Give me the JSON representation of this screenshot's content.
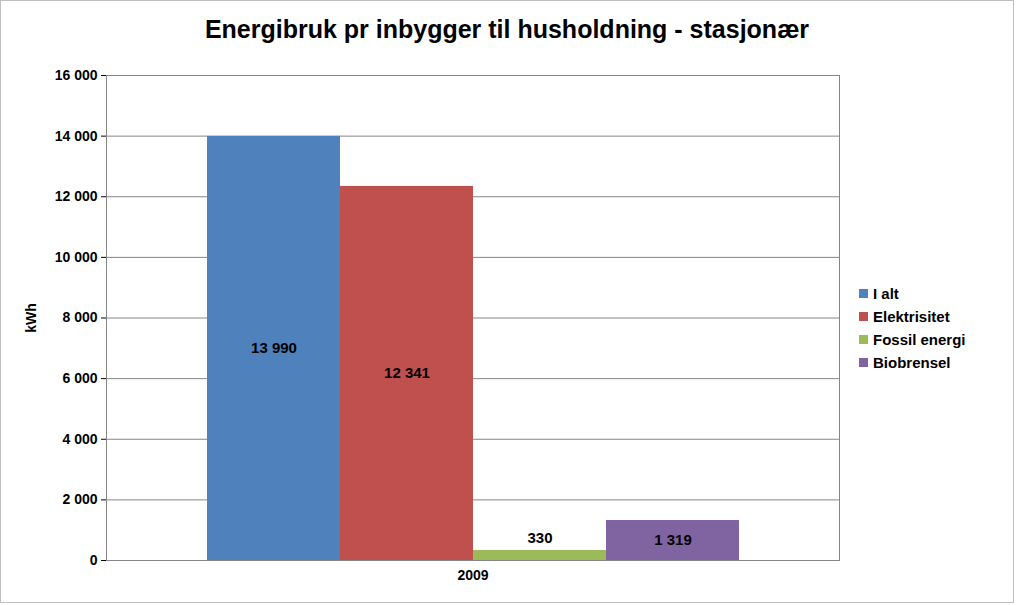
{
  "chart_data": {
    "type": "bar",
    "title": "Energibruk pr inbygger  til husholdning - stasjonær",
    "categories": [
      "2009"
    ],
    "series": [
      {
        "name": "I alt",
        "color": "#4F81BD",
        "values": [
          13990
        ],
        "value_labels": [
          "13 990"
        ]
      },
      {
        "name": "Elektrisitet",
        "color": "#C0504D",
        "values": [
          12341
        ],
        "value_labels": [
          "12 341"
        ]
      },
      {
        "name": "Fossil energi",
        "color": "#9BBB59",
        "values": [
          330
        ],
        "value_labels": [
          "330"
        ]
      },
      {
        "name": "Biobrensel",
        "color": "#8064A2",
        "values": [
          1319
        ],
        "value_labels": [
          "1 319"
        ]
      }
    ],
    "y_label": "kWh",
    "ylim": [
      0,
      16000
    ],
    "yticks": [
      0,
      {
        "value": 2000,
        "label": "2 000"
      },
      {
        "value": 4000,
        "label": "4 000"
      },
      {
        "value": 6000,
        "label": "6 000"
      },
      {
        "value": 8000,
        "label": "8 000"
      },
      {
        "value": 10000,
        "label": "10 000"
      },
      {
        "value": 12000,
        "label": "12 000"
      },
      {
        "value": 14000,
        "label": "14 000"
      },
      {
        "value": 16000,
        "label": "16 000"
      }
    ],
    "grid": true,
    "legend": "right",
    "data_labels": true
  }
}
